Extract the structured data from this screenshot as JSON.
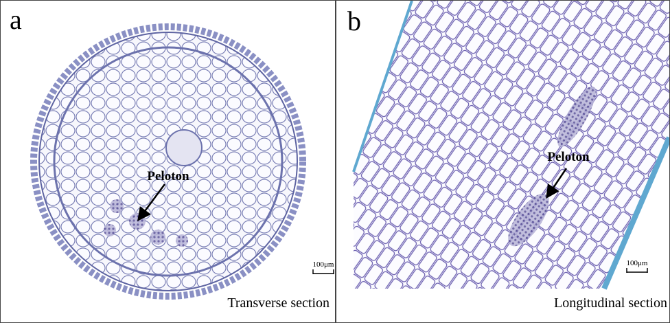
{
  "panels": [
    {
      "letter": "a",
      "annotation": "Peloton",
      "scale_bar": "100μm",
      "caption": "Transverse section"
    },
    {
      "letter": "b",
      "annotation": "Peloton",
      "scale_bar": "100μm",
      "caption": "Longitudinal section"
    }
  ]
}
